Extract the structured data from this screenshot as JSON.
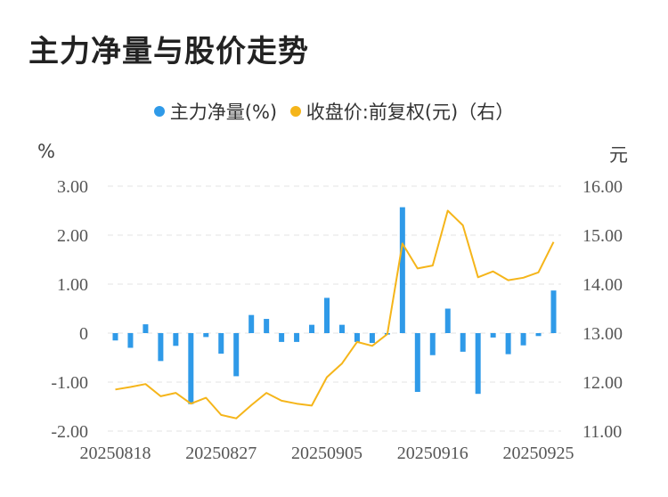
{
  "title": "主力净量与股价走势",
  "legend": [
    {
      "label": "主力净量(%)",
      "color": "#2f9ae8"
    },
    {
      "label": "收盘价:前复权(元)（右）",
      "color": "#f5b51a"
    }
  ],
  "units": {
    "left": "%",
    "right": "元"
  },
  "chart_data": {
    "type": "bar+line",
    "dates": [
      "20250818",
      "20250819",
      "20250820",
      "20250821",
      "20250822",
      "20250825",
      "20250826",
      "20250827",
      "20250828",
      "20250829",
      "20250901",
      "20250902",
      "20250903",
      "20250904",
      "20250905",
      "20250908",
      "20250909",
      "20250910",
      "20250911",
      "20250912",
      "20250915",
      "20250916",
      "20250917",
      "20250918",
      "20250919",
      "20250922",
      "20250923",
      "20250924",
      "20250925",
      "20250926"
    ],
    "x_tick_labels": [
      "20250818",
      "20250827",
      "20250905",
      "20250916",
      "20250925"
    ],
    "series": [
      {
        "name": "主力净量(%)",
        "type": "bar",
        "axis": "left",
        "values": [
          -0.15,
          -0.3,
          0.18,
          -0.57,
          -0.26,
          -1.45,
          -0.08,
          -0.42,
          -0.88,
          0.37,
          0.29,
          -0.18,
          -0.18,
          0.17,
          0.72,
          0.17,
          -0.18,
          -0.2,
          -0.03,
          2.57,
          -1.2,
          -0.45,
          0.5,
          -0.38,
          -1.24,
          -0.09,
          -0.43,
          -0.25,
          -0.06,
          0.87
        ]
      },
      {
        "name": "收盘价:前复权(元)（右）",
        "type": "line",
        "axis": "right",
        "values": [
          11.85,
          11.9,
          11.96,
          11.71,
          11.78,
          11.56,
          11.68,
          11.33,
          11.26,
          11.53,
          11.78,
          11.62,
          11.56,
          11.52,
          12.1,
          12.38,
          12.82,
          12.74,
          12.98,
          14.83,
          14.32,
          14.38,
          15.5,
          15.2,
          14.14,
          14.26,
          14.08,
          14.13,
          14.24,
          14.86
        ]
      }
    ],
    "y_left": {
      "ticks": [
        "3.00",
        "2.00",
        "1.00",
        "0",
        "-1.00",
        "-2.00"
      ],
      "values": [
        3,
        2,
        1,
        0,
        -1,
        -2
      ],
      "ylim": [
        -2,
        3
      ]
    },
    "y_right": {
      "ticks": [
        "16.00",
        "15.00",
        "14.00",
        "13.00",
        "12.00",
        "11.00"
      ],
      "values": [
        16,
        15,
        14,
        13,
        12,
        11
      ],
      "ylim": [
        11,
        16
      ]
    },
    "grid": true
  }
}
